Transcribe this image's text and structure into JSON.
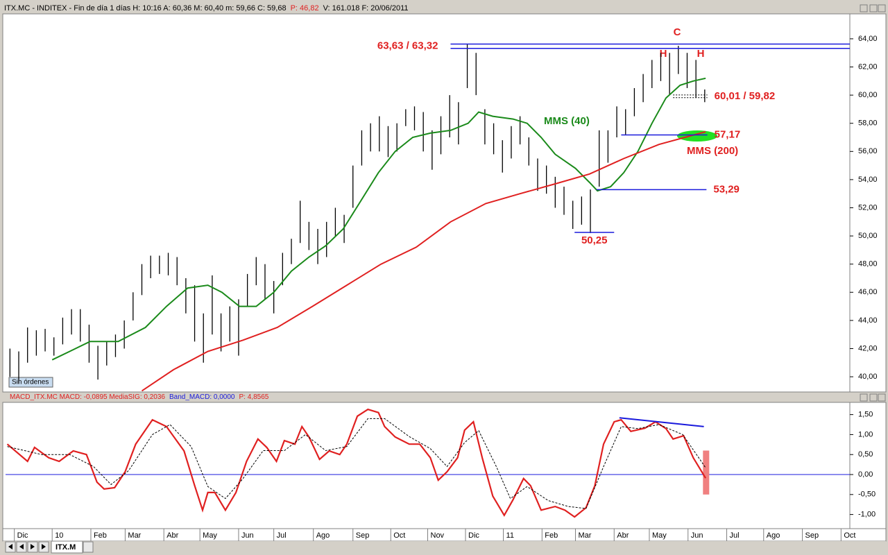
{
  "header": [
    {
      "text": "ITX.MC - INDITEX - Fin de día 1 días  H: 10:16  A: 60,36  M: 60,40  m: 59,66  C: 59,68",
      "color": "#000000"
    },
    {
      "text": "P: 46,82",
      "color": "#e02020"
    },
    {
      "text": "V: 161.018  F: 20/06/2011",
      "color": "#000000"
    }
  ],
  "tab": "ITX.M",
  "chart_data": [
    {
      "type": "hilo",
      "color": "#000000",
      "button": "Sin órdenes",
      "xlim": [
        0,
        96
      ],
      "ylim": [
        38.92,
        65.77
      ],
      "yticks": [
        {
          "value": 40,
          "label": "40,00"
        },
        {
          "value": 42,
          "label": "42,00"
        },
        {
          "value": 44,
          "label": "44,00"
        },
        {
          "value": 46,
          "label": "46,00"
        },
        {
          "value": 48,
          "label": "48,00"
        },
        {
          "value": 50,
          "label": "50,00"
        },
        {
          "value": 52,
          "label": "52,00"
        },
        {
          "value": 54,
          "label": "54,00"
        },
        {
          "value": 56,
          "label": "56,00"
        },
        {
          "value": 58,
          "label": "58,00"
        },
        {
          "value": 60,
          "label": "60,00"
        },
        {
          "value": 62,
          "label": "62,00"
        },
        {
          "value": 64,
          "label": "64,00"
        }
      ],
      "x": [
        0.5,
        1.5,
        2.5,
        3.5,
        4.5,
        5.5,
        6.5,
        7.5,
        8.5,
        9.5,
        10.5,
        11.5,
        12.5,
        13.5,
        14.5,
        15.5,
        16.5,
        17.5,
        18.5,
        19.5,
        20.5,
        21.5,
        22.5,
        23.5,
        24.5,
        25.5,
        26.5,
        27.5,
        28.5,
        29.5,
        30.5,
        31.5,
        32.5,
        33.5,
        34.5,
        35.5,
        36.5,
        37.5,
        38.5,
        39.5,
        40.5,
        41.5,
        42.5,
        43.5,
        44.5,
        45.5,
        46.5,
        47.5,
        48.5,
        49.5,
        50.5,
        51.5,
        52.5,
        53.5,
        54.5,
        55.5,
        56.5,
        57.5,
        58.5,
        59.5,
        60.5,
        61.5,
        62.5,
        63.5,
        64.5,
        65.5,
        66.5,
        67.5,
        68.5,
        69.5,
        70.5,
        71.5,
        72.5,
        73.5,
        74.5,
        75.5,
        76.5,
        77.5,
        78.5,
        79.5
      ],
      "high": [
        42.0,
        41.8,
        43.5,
        43.3,
        43.4,
        42.8,
        44.2,
        44.8,
        44.8,
        43.7,
        42.2,
        42.5,
        43.0,
        44.0,
        46.0,
        48.0,
        48.6,
        48.6,
        48.8,
        48.5,
        47.0,
        46.5,
        44.5,
        47.2,
        44.5,
        45.0,
        45.5,
        47.3,
        48.5,
        48.0,
        46.8,
        48.8,
        49.8,
        52.5,
        51.0,
        50.5,
        51.0,
        52.0,
        51.5,
        55.0,
        57.5,
        58.0,
        58.5,
        57.8,
        58.0,
        59.0,
        59.2,
        58.8,
        57.5,
        58.5,
        60.0,
        59.5,
        63.6,
        63.0,
        59.0,
        58.0,
        56.8,
        57.8,
        58.5,
        57.0,
        55.5,
        55.0,
        54.2,
        53.5,
        52.5,
        52.8,
        53.3,
        57.5,
        57.5,
        59.2,
        59.0,
        60.5,
        61.5,
        62.5,
        63.0,
        63.0,
        63.5,
        63.0,
        62.5,
        60.4
      ],
      "low": [
        40.0,
        39.5,
        41.0,
        41.5,
        41.8,
        41.5,
        42.3,
        43.0,
        42.5,
        41.0,
        39.8,
        40.8,
        41.4,
        42.0,
        44.0,
        45.8,
        47.0,
        47.3,
        47.2,
        46.5,
        44.5,
        42.5,
        41.0,
        43.0,
        41.8,
        42.5,
        41.5,
        45.0,
        46.5,
        45.5,
        44.5,
        46.5,
        48.0,
        49.5,
        49.0,
        48.0,
        48.5,
        50.0,
        49.5,
        52.0,
        55.0,
        56.0,
        56.0,
        55.6,
        56.0,
        57.8,
        57.5,
        56.0,
        54.7,
        55.8,
        57.0,
        56.5,
        60.5,
        60.0,
        56.5,
        55.8,
        54.5,
        55.5,
        56.5,
        55.0,
        53.2,
        53.0,
        52.0,
        51.5,
        50.5,
        50.8,
        50.2,
        53.5,
        55.2,
        57.0,
        57.2,
        58.5,
        59.5,
        60.5,
        61.0,
        60.0,
        61.5,
        60.5,
        59.8,
        59.5
      ],
      "series": [
        {
          "name": "MMS (40)",
          "color": "#1a8a1a",
          "x": [
            5.3,
            7.3,
            9.6,
            12.8,
            15.9,
            18.3,
            20.7,
            23.0,
            24.6,
            26.6,
            28.5,
            30.5,
            32.5,
            34.5,
            36.4,
            38.4,
            40.4,
            42.4,
            44.3,
            46.3,
            48.3,
            50.6,
            52.6,
            53.8,
            55.4,
            57.7,
            59.3,
            60.9,
            62.5,
            64.8,
            66.4,
            67.3,
            68.8,
            70.3,
            71.9,
            73.5,
            75.1,
            76.7,
            78.2,
            79.6
          ],
          "values": [
            41.2,
            41.8,
            42.5,
            42.5,
            43.5,
            45.0,
            46.3,
            46.5,
            46.0,
            45.0,
            45.0,
            46.0,
            47.5,
            48.5,
            49.3,
            50.5,
            52.5,
            54.5,
            56.0,
            57.0,
            57.3,
            57.5,
            58.0,
            58.8,
            58.5,
            58.3,
            58.0,
            57.0,
            55.8,
            54.8,
            53.8,
            53.2,
            53.5,
            54.5,
            56.0,
            58.0,
            59.8,
            60.7,
            61.0,
            61.2
          ]
        },
        {
          "name": "MMS (200)",
          "color": "#e02020",
          "x": [
            15.5,
            19.1,
            23.0,
            27.0,
            30.9,
            34.9,
            38.8,
            42.7,
            46.7,
            50.6,
            54.6,
            58.5,
            62.5,
            66.4,
            70.3,
            74.3,
            79.6
          ],
          "values": [
            39.0,
            40.5,
            41.8,
            42.6,
            43.5,
            45.0,
            46.5,
            48.0,
            49.2,
            51.0,
            52.3,
            53.0,
            53.7,
            54.4,
            55.5,
            56.5,
            57.4
          ]
        }
      ],
      "levels": [
        {
          "values": [
            63.63,
            63.32
          ],
          "label": "63,63 / 63,32",
          "x": [
            50.6,
            96
          ],
          "color": "#1a1adc",
          "style": "solid",
          "label_side": "left"
        },
        {
          "values": [
            60.01,
            59.82
          ],
          "label": "60,01 / 59,82",
          "x": [
            75.9,
            79.8
          ],
          "color": "#000000",
          "style": "dashed",
          "label_side": "right"
        },
        {
          "values": [
            57.17
          ],
          "label": "57,17",
          "x": [
            70,
            79.8
          ],
          "color": "#1a1adc",
          "style": "solid",
          "label_side": "right"
        },
        {
          "values": [
            53.29
          ],
          "label": "53,29",
          "x": [
            67.2,
            79.7
          ],
          "color": "#1a1adc",
          "style": "solid",
          "label_side": "right"
        },
        {
          "values": [
            50.25
          ],
          "label": "50,25",
          "x": [
            64.7,
            69.2
          ],
          "color": "#1a1adc",
          "style": "solid",
          "label_side": "below"
        }
      ],
      "annotations": [
        "C",
        "H",
        "H"
      ]
    },
    {
      "type": "line",
      "title": [
        {
          "text": "MACD_ITX.MC  MACD: -0,0895  MediaSIG: 0,2036",
          "color": "#e02020"
        },
        {
          "text": "Band_MACD: 0,0000",
          "color": "#1a1adc"
        },
        {
          "text": "P: 4,8565",
          "color": "#e02020"
        }
      ],
      "band": 0,
      "band_color": "#1a1adc",
      "xlim": [
        0,
        96
      ],
      "ylim": [
        -1.354,
        1.806
      ],
      "yticks": [
        {
          "value": -1,
          "label": "-1,00"
        },
        {
          "value": -0.5,
          "label": "-0,50"
        },
        {
          "value": 0,
          "label": "0,00"
        },
        {
          "value": 0.5,
          "label": "0,50"
        },
        {
          "value": 1,
          "label": "1,00"
        },
        {
          "value": 1.5,
          "label": "1,50"
        }
      ],
      "xticks": [
        {
          "value": 1,
          "label": "Dic"
        },
        {
          "value": 5.3,
          "label": "10"
        },
        {
          "value": 9.7,
          "label": "Feb"
        },
        {
          "value": 13.6,
          "label": "Mar"
        },
        {
          "value": 18,
          "label": "Abr"
        },
        {
          "value": 22.1,
          "label": "May"
        },
        {
          "value": 26.5,
          "label": "Jun"
        },
        {
          "value": 30.5,
          "label": "Jul"
        },
        {
          "value": 35,
          "label": "Ago"
        },
        {
          "value": 39.5,
          "label": "Sep"
        },
        {
          "value": 43.8,
          "label": "Oct"
        },
        {
          "value": 48,
          "label": "Nov"
        },
        {
          "value": 52.3,
          "label": "Dic"
        },
        {
          "value": 56.6,
          "label": "11"
        },
        {
          "value": 61,
          "label": "Feb"
        },
        {
          "value": 64.8,
          "label": "Mar"
        },
        {
          "value": 69.2,
          "label": "Abr"
        },
        {
          "value": 73.2,
          "label": "May"
        },
        {
          "value": 77.6,
          "label": "Jun"
        },
        {
          "value": 82,
          "label": "Jul"
        },
        {
          "value": 86.2,
          "label": "Ago"
        },
        {
          "value": 90.6,
          "label": "Sep"
        },
        {
          "value": 95,
          "label": "Oct"
        }
      ],
      "series": [
        {
          "color": "#e02020",
          "style": "solid",
          "x": [
            0.2,
            2.5,
            3.3,
            4.9,
            6.1,
            7.7,
            9.2,
            10.4,
            11.2,
            12.4,
            13.6,
            14.8,
            16.7,
            18.3,
            20.3,
            21.5,
            22.4,
            23.0,
            23.8,
            25.0,
            26.2,
            27.4,
            28.7,
            29.7,
            30.8,
            31.7,
            32.9,
            33.7,
            34.5,
            35.7,
            36.8,
            38.0,
            38.8,
            40.0,
            41.2,
            42.4,
            43.1,
            44.3,
            45.9,
            47.1,
            48.3,
            49.2,
            50.2,
            51.4,
            52.2,
            53.2,
            54.2,
            55.4,
            56.7,
            57.7,
            58.9,
            59.7,
            60.9,
            62.5,
            63.6,
            64.7,
            66.0,
            67.0,
            68.0,
            69.2,
            70.0,
            71.1,
            72.7,
            73.9,
            75.1,
            75.9,
            77.1,
            78.2,
            79.6
          ],
          "values": [
            0.76,
            0.33,
            0.68,
            0.42,
            0.33,
            0.59,
            0.5,
            -0.19,
            -0.36,
            -0.33,
            0.07,
            0.76,
            1.37,
            1.2,
            0.59,
            -0.28,
            -0.89,
            -0.45,
            -0.45,
            -0.89,
            -0.45,
            0.33,
            0.89,
            0.68,
            0.33,
            0.85,
            0.76,
            1.2,
            0.94,
            0.38,
            0.59,
            0.5,
            0.76,
            1.46,
            1.63,
            1.55,
            1.2,
            0.94,
            0.76,
            0.76,
            0.42,
            -0.14,
            0.07,
            0.42,
            1.11,
            1.32,
            0.42,
            -0.54,
            -1.02,
            -0.63,
            -0.1,
            -0.28,
            -0.89,
            -0.8,
            -0.89,
            -1.06,
            -0.83,
            -0.28,
            0.76,
            1.32,
            1.37,
            1.08,
            1.16,
            1.32,
            1.15,
            0.89,
            0.97,
            0.42,
            -0.09
          ]
        },
        {
          "color": "#000000",
          "style": "dashed",
          "x": [
            0.2,
            4.1,
            7.3,
            10.0,
            12.0,
            14.0,
            16.7,
            18.7,
            21.1,
            23.0,
            25.0,
            27.0,
            29.3,
            31.7,
            34.1,
            36.4,
            38.8,
            41.2,
            43.1,
            45.9,
            48.3,
            50.2,
            52.2,
            53.8,
            55.8,
            57.4,
            59.3,
            61.7,
            64.0,
            66.0,
            68.0,
            70.0,
            71.9,
            74.3,
            77.0,
            79.6
          ],
          "values": [
            0.7,
            0.5,
            0.5,
            0.2,
            -0.25,
            0.1,
            1.0,
            1.25,
            0.7,
            -0.3,
            -0.6,
            -0.1,
            0.6,
            0.6,
            1.0,
            0.6,
            0.7,
            1.4,
            1.4,
            0.95,
            0.65,
            0.2,
            0.8,
            1.1,
            0.2,
            -0.6,
            -0.3,
            -0.65,
            -0.8,
            -0.85,
            0.2,
            1.2,
            1.15,
            1.25,
            1.0,
            0.17
          ]
        }
      ],
      "trendline": {
        "x": [
          69.8,
          79.4
        ],
        "y": [
          1.42,
          1.2
        ],
        "color": "#1a1adc"
      },
      "highlight": {
        "x": 79.3,
        "top": 0.6,
        "bottom": -0.5,
        "color": "#f08080"
      }
    }
  ]
}
